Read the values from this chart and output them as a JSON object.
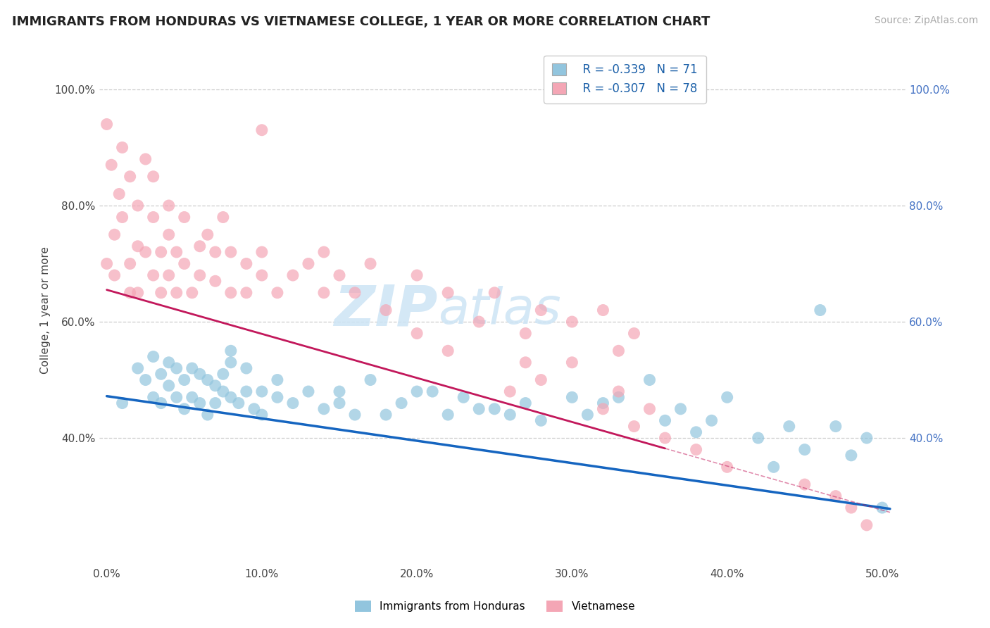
{
  "title": "IMMIGRANTS FROM HONDURAS VS VIETNAMESE COLLEGE, 1 YEAR OR MORE CORRELATION CHART",
  "source_text": "Source: ZipAtlas.com",
  "ylabel": "College, 1 year or more",
  "legend_label_blue": "Immigrants from Honduras",
  "legend_label_pink": "Vietnamese",
  "r_blue": -0.339,
  "n_blue": 71,
  "r_pink": -0.307,
  "n_pink": 78,
  "xlim": [
    -0.005,
    0.515
  ],
  "ylim": [
    0.18,
    1.06
  ],
  "xticks": [
    0.0,
    0.1,
    0.2,
    0.3,
    0.4,
    0.5
  ],
  "xticklabels": [
    "0.0%",
    "10.0%",
    "20.0%",
    "30.0%",
    "40.0%",
    "50.0%"
  ],
  "yticks_left": [
    0.4,
    0.6,
    0.8,
    1.0
  ],
  "yticklabels_left": [
    "40.0%",
    "60.0%",
    "80.0%",
    "100.0%"
  ],
  "yticks_right": [
    0.4,
    0.6,
    0.8,
    1.0
  ],
  "yticklabels_right": [
    "40.0%",
    "60.0%",
    "80.0%",
    "100.0%"
  ],
  "color_blue": "#92c5de",
  "color_pink": "#f4a6b5",
  "line_color_blue": "#1565c0",
  "line_color_pink": "#c2185b",
  "background_color": "#ffffff",
  "grid_color": "#c8c8c8",
  "blue_x": [
    0.01,
    0.02,
    0.025,
    0.03,
    0.03,
    0.035,
    0.035,
    0.04,
    0.04,
    0.045,
    0.045,
    0.05,
    0.05,
    0.055,
    0.055,
    0.06,
    0.06,
    0.065,
    0.065,
    0.07,
    0.07,
    0.075,
    0.075,
    0.08,
    0.08,
    0.085,
    0.09,
    0.09,
    0.095,
    0.1,
    0.1,
    0.11,
    0.11,
    0.12,
    0.13,
    0.14,
    0.15,
    0.16,
    0.17,
    0.18,
    0.19,
    0.2,
    0.22,
    0.23,
    0.25,
    0.26,
    0.28,
    0.3,
    0.31,
    0.32,
    0.33,
    0.35,
    0.36,
    0.37,
    0.38,
    0.4,
    0.43,
    0.44,
    0.45,
    0.46,
    0.47,
    0.48,
    0.49,
    0.5,
    0.42,
    0.39,
    0.27,
    0.24,
    0.21,
    0.15,
    0.08
  ],
  "blue_y": [
    0.46,
    0.52,
    0.5,
    0.54,
    0.47,
    0.51,
    0.46,
    0.53,
    0.49,
    0.52,
    0.47,
    0.5,
    0.45,
    0.52,
    0.47,
    0.51,
    0.46,
    0.5,
    0.44,
    0.49,
    0.46,
    0.51,
    0.48,
    0.47,
    0.53,
    0.46,
    0.48,
    0.52,
    0.45,
    0.48,
    0.44,
    0.47,
    0.5,
    0.46,
    0.48,
    0.45,
    0.48,
    0.44,
    0.5,
    0.44,
    0.46,
    0.48,
    0.44,
    0.47,
    0.45,
    0.44,
    0.43,
    0.47,
    0.44,
    0.46,
    0.47,
    0.5,
    0.43,
    0.45,
    0.41,
    0.47,
    0.35,
    0.42,
    0.38,
    0.62,
    0.42,
    0.37,
    0.4,
    0.28,
    0.4,
    0.43,
    0.46,
    0.45,
    0.48,
    0.46,
    0.55
  ],
  "pink_x": [
    0.0,
    0.005,
    0.008,
    0.01,
    0.01,
    0.015,
    0.015,
    0.015,
    0.02,
    0.02,
    0.02,
    0.025,
    0.025,
    0.03,
    0.03,
    0.03,
    0.035,
    0.035,
    0.04,
    0.04,
    0.04,
    0.045,
    0.045,
    0.05,
    0.05,
    0.055,
    0.06,
    0.06,
    0.065,
    0.07,
    0.07,
    0.075,
    0.08,
    0.08,
    0.09,
    0.09,
    0.1,
    0.1,
    0.11,
    0.12,
    0.13,
    0.14,
    0.15,
    0.16,
    0.17,
    0.18,
    0.2,
    0.22,
    0.24,
    0.25,
    0.27,
    0.28,
    0.1,
    0.14,
    0.2,
    0.22,
    0.26,
    0.27,
    0.28,
    0.3,
    0.32,
    0.33,
    0.34,
    0.35,
    0.36,
    0.38,
    0.4,
    0.45,
    0.47,
    0.48,
    0.49,
    0.3,
    0.32,
    0.33,
    0.34,
    0.005,
    0.0,
    0.003
  ],
  "pink_y": [
    0.7,
    0.75,
    0.82,
    0.78,
    0.9,
    0.85,
    0.7,
    0.65,
    0.8,
    0.73,
    0.65,
    0.88,
    0.72,
    0.78,
    0.68,
    0.85,
    0.65,
    0.72,
    0.75,
    0.68,
    0.8,
    0.65,
    0.72,
    0.7,
    0.78,
    0.65,
    0.73,
    0.68,
    0.75,
    0.72,
    0.67,
    0.78,
    0.65,
    0.72,
    0.7,
    0.65,
    0.68,
    0.72,
    0.65,
    0.68,
    0.7,
    0.65,
    0.68,
    0.65,
    0.7,
    0.62,
    0.68,
    0.65,
    0.6,
    0.65,
    0.58,
    0.62,
    0.93,
    0.72,
    0.58,
    0.55,
    0.48,
    0.53,
    0.5,
    0.53,
    0.45,
    0.48,
    0.42,
    0.45,
    0.4,
    0.38,
    0.35,
    0.32,
    0.3,
    0.28,
    0.25,
    0.6,
    0.62,
    0.55,
    0.58,
    0.68,
    0.94,
    0.87
  ],
  "title_fontsize": 13,
  "axis_fontsize": 11,
  "tick_fontsize": 11,
  "source_fontsize": 10,
  "line_blue_x0": 0.0,
  "line_blue_x1": 0.505,
  "line_blue_y0": 0.472,
  "line_blue_y1": 0.278,
  "line_pink_x0": 0.0,
  "line_pink_x1": 0.36,
  "line_pink_y0": 0.655,
  "line_pink_y1": 0.382
}
